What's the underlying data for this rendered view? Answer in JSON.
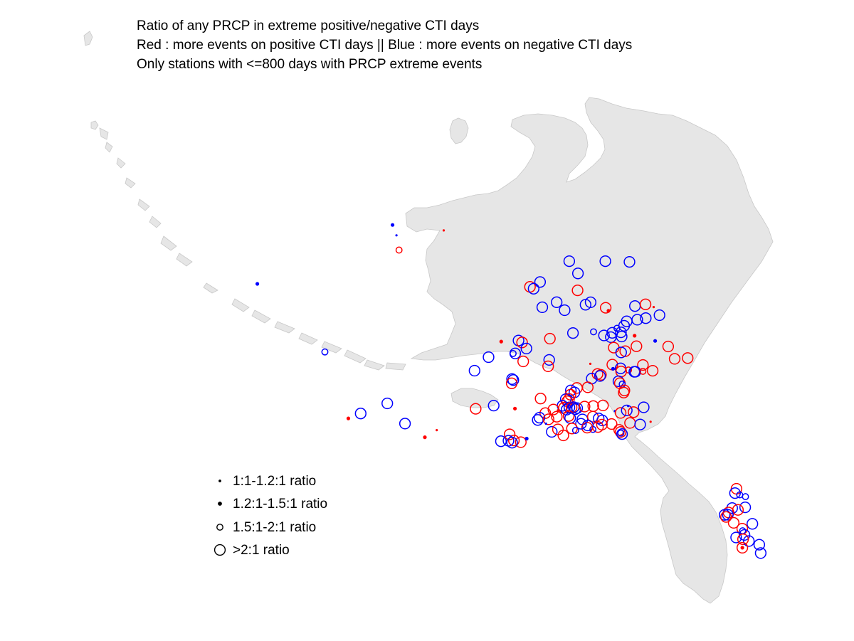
{
  "title": {
    "lines": [
      "Ratio of any PRCP in extreme positive/negative CTI days",
      "Red : more events on positive CTI days || Blue : more events on negative CTI days",
      "Only stations with <=800 days with PRCP extreme events"
    ]
  },
  "colors": {
    "positive": "#ff0000",
    "negative": "#0000ff",
    "land": "#e6e6e6",
    "coast": "#c8c8c8",
    "legend_marker": "#000000"
  },
  "legend": {
    "items": [
      {
        "label": "1:1-1.2:1 ratio",
        "size_class": 1
      },
      {
        "label": "1.2:1-1.5:1 ratio",
        "size_class": 2
      },
      {
        "label": "1.5:1-2:1 ratio",
        "size_class": 3
      },
      {
        "label": ">2:1 ratio",
        "size_class": 4
      }
    ]
  },
  "map_data": {
    "region": "Alaska",
    "stations": [
      {
        "lon": -148.9,
        "lat": 70.2,
        "sign": "neg",
        "size": 4
      },
      {
        "lon": -145.6,
        "lat": 70.1,
        "sign": "neg",
        "size": 4
      },
      {
        "lon": -143.4,
        "lat": 70.0,
        "sign": "neg",
        "size": 4
      },
      {
        "lon": -148.3,
        "lat": 69.6,
        "sign": "neg",
        "size": 4
      },
      {
        "lon": -151.9,
        "lat": 69.3,
        "sign": "neg",
        "size": 4
      },
      {
        "lon": -152.9,
        "lat": 69.1,
        "sign": "red",
        "size": 4
      },
      {
        "lon": -152.6,
        "lat": 69.0,
        "sign": "neg",
        "size": 4
      },
      {
        "lon": -148.6,
        "lat": 68.8,
        "sign": "red",
        "size": 4
      },
      {
        "lon": -150.7,
        "lat": 68.3,
        "sign": "neg",
        "size": 4
      },
      {
        "lon": -147.6,
        "lat": 68.2,
        "sign": "neg",
        "size": 4
      },
      {
        "lon": -148.1,
        "lat": 68.1,
        "sign": "neg",
        "size": 4
      },
      {
        "lon": -152.1,
        "lat": 68.1,
        "sign": "neg",
        "size": 4
      },
      {
        "lon": -150.1,
        "lat": 67.9,
        "sign": "neg",
        "size": 4
      },
      {
        "lon": -146.3,
        "lat": 67.9,
        "sign": "red",
        "size": 4
      },
      {
        "lon": -146.1,
        "lat": 67.75,
        "sign": "red",
        "size": 2
      },
      {
        "lon": -143.6,
        "lat": 67.9,
        "sign": "neg",
        "size": 4
      },
      {
        "lon": -142.6,
        "lat": 67.95,
        "sign": "red",
        "size": 4
      },
      {
        "lon": -141.9,
        "lat": 67.8,
        "sign": "red",
        "size": 1
      },
      {
        "lon": -141.5,
        "lat": 67.4,
        "sign": "neg",
        "size": 4
      },
      {
        "lon": -142.8,
        "lat": 67.3,
        "sign": "neg",
        "size": 4
      },
      {
        "lon": -143.6,
        "lat": 67.25,
        "sign": "neg",
        "size": 4
      },
      {
        "lon": -144.6,
        "lat": 67.2,
        "sign": "neg",
        "size": 4
      },
      {
        "lon": -144.9,
        "lat": 67.0,
        "sign": "neg",
        "size": 4
      },
      {
        "lon": -145.6,
        "lat": 66.9,
        "sign": "neg",
        "size": 3
      },
      {
        "lon": -146.1,
        "lat": 66.7,
        "sign": "neg",
        "size": 4
      },
      {
        "lon": -145.3,
        "lat": 66.7,
        "sign": "neg",
        "size": 4
      },
      {
        "lon": -147.8,
        "lat": 66.8,
        "sign": "neg",
        "size": 3
      },
      {
        "lon": -149.7,
        "lat": 66.8,
        "sign": "neg",
        "size": 4
      },
      {
        "lon": -151.9,
        "lat": 66.6,
        "sign": "red",
        "size": 4
      },
      {
        "lon": -154.8,
        "lat": 66.6,
        "sign": "neg",
        "size": 4
      },
      {
        "lon": -154.5,
        "lat": 66.5,
        "sign": "red",
        "size": 4
      },
      {
        "lon": -146.9,
        "lat": 66.6,
        "sign": "neg",
        "size": 4
      },
      {
        "lon": -146.3,
        "lat": 66.5,
        "sign": "neg",
        "size": 4
      },
      {
        "lon": -145.3,
        "lat": 66.5,
        "sign": "neg",
        "size": 4
      },
      {
        "lon": -144.1,
        "lat": 66.5,
        "sign": "red",
        "size": 2
      },
      {
        "lon": -142.3,
        "lat": 66.2,
        "sign": "neg",
        "size": 2
      },
      {
        "lon": -156.4,
        "lat": 66.6,
        "sign": "red",
        "size": 2
      },
      {
        "lon": -154.2,
        "lat": 66.2,
        "sign": "neg",
        "size": 4
      },
      {
        "lon": -155.3,
        "lat": 66.0,
        "sign": "neg",
        "size": 4
      },
      {
        "lon": -155.5,
        "lat": 66.0,
        "sign": "neg",
        "size": 3
      },
      {
        "lon": -157.8,
        "lat": 65.9,
        "sign": "neg",
        "size": 4
      },
      {
        "lon": -146.2,
        "lat": 66.0,
        "sign": "red",
        "size": 4
      },
      {
        "lon": -144.1,
        "lat": 66.0,
        "sign": "red",
        "size": 4
      },
      {
        "lon": -141.2,
        "lat": 65.9,
        "sign": "red",
        "size": 4
      },
      {
        "lon": -145.2,
        "lat": 65.8,
        "sign": "red",
        "size": 4
      },
      {
        "lon": -145.6,
        "lat": 65.75,
        "sign": "neg",
        "size": 4
      },
      {
        "lon": -152.3,
        "lat": 65.6,
        "sign": "neg",
        "size": 4
      },
      {
        "lon": -154.7,
        "lat": 65.6,
        "sign": "red",
        "size": 4
      },
      {
        "lon": -152.5,
        "lat": 65.3,
        "sign": "red",
        "size": 4
      },
      {
        "lon": -148.6,
        "lat": 65.3,
        "sign": "red",
        "size": 1
      },
      {
        "lon": -146.6,
        "lat": 65.2,
        "sign": "red",
        "size": 4
      },
      {
        "lon": -140.8,
        "lat": 65.3,
        "sign": "red",
        "size": 4
      },
      {
        "lon": -139.6,
        "lat": 65.3,
        "sign": "red",
        "size": 4
      },
      {
        "lon": -159.3,
        "lat": 65.3,
        "sign": "neg",
        "size": 4
      },
      {
        "lon": -143.8,
        "lat": 65.1,
        "sign": "red",
        "size": 4
      },
      {
        "lon": -146.6,
        "lat": 65.0,
        "sign": "neg",
        "size": 2
      },
      {
        "lon": -145.9,
        "lat": 65.0,
        "sign": "neg",
        "size": 4
      },
      {
        "lon": -145.2,
        "lat": 64.9,
        "sign": "red",
        "size": 3
      },
      {
        "lon": -145.9,
        "lat": 64.85,
        "sign": "red",
        "size": 4
      },
      {
        "lon": -144.7,
        "lat": 64.8,
        "sign": "neg",
        "size": 4
      },
      {
        "lon": -144.6,
        "lat": 64.8,
        "sign": "neg",
        "size": 4
      },
      {
        "lon": -143.0,
        "lat": 64.8,
        "sign": "red",
        "size": 4
      },
      {
        "lon": -143.9,
        "lat": 64.8,
        "sign": "red",
        "size": 3
      },
      {
        "lon": -148.1,
        "lat": 64.8,
        "sign": "red",
        "size": 4
      },
      {
        "lon": -147.8,
        "lat": 64.75,
        "sign": "red",
        "size": 4
      },
      {
        "lon": -147.9,
        "lat": 64.7,
        "sign": "neg",
        "size": 4
      },
      {
        "lon": -156.0,
        "lat": 64.8,
        "sign": "neg",
        "size": 4
      },
      {
        "lon": -155.9,
        "lat": 64.75,
        "sign": "neg",
        "size": 4
      },
      {
        "lon": -156.1,
        "lat": 64.6,
        "sign": "red",
        "size": 4
      },
      {
        "lon": -148.7,
        "lat": 64.6,
        "sign": "neg",
        "size": 4
      },
      {
        "lon": -146.3,
        "lat": 64.4,
        "sign": "neg",
        "size": 4
      },
      {
        "lon": -146.2,
        "lat": 64.3,
        "sign": "red",
        "size": 4
      },
      {
        "lon": -146.0,
        "lat": 64.25,
        "sign": "neg",
        "size": 3
      },
      {
        "lon": -149.2,
        "lat": 64.2,
        "sign": "red",
        "size": 4
      },
      {
        "lon": -150.2,
        "lat": 64.2,
        "sign": "red",
        "size": 4
      },
      {
        "lon": -150.8,
        "lat": 64.1,
        "sign": "neg",
        "size": 4
      },
      {
        "lon": -150.5,
        "lat": 64.0,
        "sign": "neg",
        "size": 4
      },
      {
        "lon": -150.9,
        "lat": 63.9,
        "sign": "red",
        "size": 4
      },
      {
        "lon": -145.9,
        "lat": 63.95,
        "sign": "red",
        "size": 4
      },
      {
        "lon": -146.0,
        "lat": 63.85,
        "sign": "red",
        "size": 4
      },
      {
        "lon": -153.7,
        "lat": 63.8,
        "sign": "red",
        "size": 4
      },
      {
        "lon": -151.4,
        "lat": 63.7,
        "sign": "neg",
        "size": 4
      },
      {
        "lon": -151.1,
        "lat": 63.7,
        "sign": "red",
        "size": 4
      },
      {
        "lon": -151.3,
        "lat": 63.6,
        "sign": "red",
        "size": 4
      },
      {
        "lon": -159.8,
        "lat": 63.5,
        "sign": "red",
        "size": 4
      },
      {
        "lon": -158.1,
        "lat": 63.6,
        "sign": "neg",
        "size": 4
      },
      {
        "lon": -156.2,
        "lat": 63.4,
        "sign": "red",
        "size": 2
      },
      {
        "lon": -151.8,
        "lat": 63.4,
        "sign": "neg",
        "size": 4
      },
      {
        "lon": -151.7,
        "lat": 63.3,
        "sign": "red",
        "size": 4
      },
      {
        "lon": -151.5,
        "lat": 63.2,
        "sign": "neg",
        "size": 4
      },
      {
        "lon": -151.2,
        "lat": 63.3,
        "sign": "neg",
        "size": 4
      },
      {
        "lon": -151.0,
        "lat": 63.3,
        "sign": "red",
        "size": 4
      },
      {
        "lon": -150.8,
        "lat": 63.3,
        "sign": "neg",
        "size": 4
      },
      {
        "lon": -150.7,
        "lat": 63.2,
        "sign": "neg",
        "size": 4
      },
      {
        "lon": -150.5,
        "lat": 63.25,
        "sign": "neg",
        "size": 4
      },
      {
        "lon": -149.8,
        "lat": 63.3,
        "sign": "red",
        "size": 4
      },
      {
        "lon": -149.0,
        "lat": 63.3,
        "sign": "red",
        "size": 4
      },
      {
        "lon": -148.1,
        "lat": 63.3,
        "sign": "red",
        "size": 4
      },
      {
        "lon": -152.3,
        "lat": 63.2,
        "sign": "red",
        "size": 1
      },
      {
        "lon": -152.7,
        "lat": 63.25,
        "sign": "red",
        "size": 4
      },
      {
        "lon": -153.5,
        "lat": 63.1,
        "sign": "red",
        "size": 4
      },
      {
        "lon": -154.1,
        "lat": 62.9,
        "sign": "neg",
        "size": 4
      },
      {
        "lon": -154.3,
        "lat": 62.8,
        "sign": "neg",
        "size": 4
      },
      {
        "lon": -153.3,
        "lat": 62.8,
        "sign": "red",
        "size": 4
      },
      {
        "lon": -152.5,
        "lat": 62.9,
        "sign": "red",
        "size": 4
      },
      {
        "lon": -151.4,
        "lat": 62.9,
        "sign": "red",
        "size": 4
      },
      {
        "lon": -151.3,
        "lat": 62.8,
        "sign": "neg",
        "size": 4
      },
      {
        "lon": -150.2,
        "lat": 62.7,
        "sign": "neg",
        "size": 4
      },
      {
        "lon": -149.2,
        "lat": 62.8,
        "sign": "red",
        "size": 4
      },
      {
        "lon": -148.7,
        "lat": 62.7,
        "sign": "neg",
        "size": 4
      },
      {
        "lon": -148.4,
        "lat": 62.6,
        "sign": "neg",
        "size": 4
      },
      {
        "lon": -147.1,
        "lat": 63.0,
        "sign": "neg",
        "size": 1
      },
      {
        "lon": -145.8,
        "lat": 63.2,
        "sign": "neg",
        "size": 1
      },
      {
        "lon": -146.6,
        "lat": 62.9,
        "sign": "red",
        "size": 4
      },
      {
        "lon": -146.0,
        "lat": 63.0,
        "sign": "neg",
        "size": 4
      },
      {
        "lon": -145.4,
        "lat": 62.9,
        "sign": "red",
        "size": 4
      },
      {
        "lon": -144.4,
        "lat": 63.1,
        "sign": "neg",
        "size": 4
      },
      {
        "lon": -147.6,
        "lat": 62.4,
        "sign": "red",
        "size": 4
      },
      {
        "lon": -148.5,
        "lat": 62.4,
        "sign": "red",
        "size": 4
      },
      {
        "lon": -145.9,
        "lat": 62.4,
        "sign": "red",
        "size": 4
      },
      {
        "lon": -145.0,
        "lat": 62.3,
        "sign": "neg",
        "size": 4
      },
      {
        "lon": -144.0,
        "lat": 62.4,
        "sign": "red",
        "size": 1
      },
      {
        "lon": -148.9,
        "lat": 62.3,
        "sign": "red",
        "size": 4
      },
      {
        "lon": -149.4,
        "lat": 62.2,
        "sign": "neg",
        "size": 3
      },
      {
        "lon": -149.8,
        "lat": 62.4,
        "sign": "neg",
        "size": 4
      },
      {
        "lon": -149.9,
        "lat": 62.3,
        "sign": "red",
        "size": 4
      },
      {
        "lon": -147.0,
        "lat": 62.1,
        "sign": "red",
        "size": 4
      },
      {
        "lon": -146.9,
        "lat": 62.0,
        "sign": "red",
        "size": 4
      },
      {
        "lon": -146.8,
        "lat": 61.9,
        "sign": "neg",
        "size": 4
      },
      {
        "lon": -146.9,
        "lat": 61.95,
        "sign": "neg",
        "size": 3
      },
      {
        "lon": -150.4,
        "lat": 62.5,
        "sign": "neg",
        "size": 4
      },
      {
        "lon": -151.3,
        "lat": 62.3,
        "sign": "red",
        "size": 4
      },
      {
        "lon": -153.2,
        "lat": 62.2,
        "sign": "neg",
        "size": 4
      },
      {
        "lon": -152.6,
        "lat": 62.3,
        "sign": "red",
        "size": 4
      },
      {
        "lon": -152.2,
        "lat": 62.0,
        "sign": "red",
        "size": 4
      },
      {
        "lon": -151.0,
        "lat": 62.2,
        "sign": "neg",
        "size": 3
      },
      {
        "lon": -153.6,
        "lat": 62.6,
        "sign": "neg",
        "size": 1
      },
      {
        "lon": -158.0,
        "lat": 61.9,
        "sign": "neg",
        "size": 4
      },
      {
        "lon": -156.8,
        "lat": 61.9,
        "sign": "red",
        "size": 4
      },
      {
        "lon": -156.2,
        "lat": 61.8,
        "sign": "red",
        "size": 4
      },
      {
        "lon": -155.6,
        "lat": 61.95,
        "sign": "neg",
        "size": 2
      },
      {
        "lon": -157.3,
        "lat": 61.9,
        "sign": "neg",
        "size": 4
      },
      {
        "lon": -157.1,
        "lat": 62.2,
        "sign": "red",
        "size": 4
      },
      {
        "lon": -157.0,
        "lat": 61.8,
        "sign": "neg",
        "size": 4
      },
      {
        "lon": -167.8,
        "lat": 64.0,
        "sign": "neg",
        "size": 4
      },
      {
        "lon": -170.4,
        "lat": 63.6,
        "sign": "neg",
        "size": 4
      },
      {
        "lon": -171.6,
        "lat": 63.4,
        "sign": "red",
        "size": 2
      },
      {
        "lon": -166.5,
        "lat": 63.0,
        "sign": "neg",
        "size": 4
      },
      {
        "lon": -164.9,
        "lat": 62.3,
        "sign": "red",
        "size": 2
      },
      {
        "lon": -163.7,
        "lat": 62.6,
        "sign": "red",
        "size": 1
      },
      {
        "lon": -172.7,
        "lat": 66.6,
        "sign": "neg",
        "size": 3
      },
      {
        "lon": -177.8,
        "lat": 70.0,
        "sign": "neg",
        "size": 2
      },
      {
        "lon": -164.5,
        "lat": 72.4,
        "sign": "neg",
        "size": 2
      },
      {
        "lon": -164.3,
        "lat": 71.9,
        "sign": "neg",
        "size": 1
      },
      {
        "lon": -164.3,
        "lat": 71.2,
        "sign": "red",
        "size": 3
      },
      {
        "lon": -159.9,
        "lat": 72.0,
        "sign": "red",
        "size": 1
      },
      {
        "lon": -137.2,
        "lat": 59.0,
        "sign": "red",
        "size": 4
      },
      {
        "lon": -137.4,
        "lat": 58.8,
        "sign": "neg",
        "size": 4
      },
      {
        "lon": -137.0,
        "lat": 58.7,
        "sign": "neg",
        "size": 3
      },
      {
        "lon": -136.5,
        "lat": 58.6,
        "sign": "neg",
        "size": 3
      },
      {
        "lon": -137.9,
        "lat": 58.1,
        "sign": "neg",
        "size": 4
      },
      {
        "lon": -136.7,
        "lat": 58.1,
        "sign": "neg",
        "size": 4
      },
      {
        "lon": -137.4,
        "lat": 58.0,
        "sign": "red",
        "size": 4
      },
      {
        "lon": -138.3,
        "lat": 57.9,
        "sign": "red",
        "size": 4
      },
      {
        "lon": -138.7,
        "lat": 57.8,
        "sign": "neg",
        "size": 4
      },
      {
        "lon": -138.4,
        "lat": 57.8,
        "sign": "neg",
        "size": 4
      },
      {
        "lon": -138.6,
        "lat": 57.7,
        "sign": "red",
        "size": 4
      },
      {
        "lon": -138.0,
        "lat": 57.4,
        "sign": "red",
        "size": 4
      },
      {
        "lon": -136.3,
        "lat": 57.3,
        "sign": "neg",
        "size": 4
      },
      {
        "lon": -137.3,
        "lat": 57.1,
        "sign": "red",
        "size": 4
      },
      {
        "lon": -137.3,
        "lat": 57.0,
        "sign": "neg",
        "size": 3
      },
      {
        "lon": -137.2,
        "lat": 56.8,
        "sign": "neg",
        "size": 4
      },
      {
        "lon": -138.0,
        "lat": 56.7,
        "sign": "neg",
        "size": 4
      },
      {
        "lon": -137.4,
        "lat": 56.6,
        "sign": "red",
        "size": 4
      },
      {
        "lon": -136.9,
        "lat": 56.5,
        "sign": "neg",
        "size": 4
      },
      {
        "lon": -137.6,
        "lat": 56.2,
        "sign": "red",
        "size": 4
      },
      {
        "lon": -137.6,
        "lat": 56.2,
        "sign": "red",
        "size": 2
      },
      {
        "lon": -136.0,
        "lat": 56.3,
        "sign": "neg",
        "size": 4
      },
      {
        "lon": -136.0,
        "lat": 55.9,
        "sign": "neg",
        "size": 4
      }
    ]
  }
}
